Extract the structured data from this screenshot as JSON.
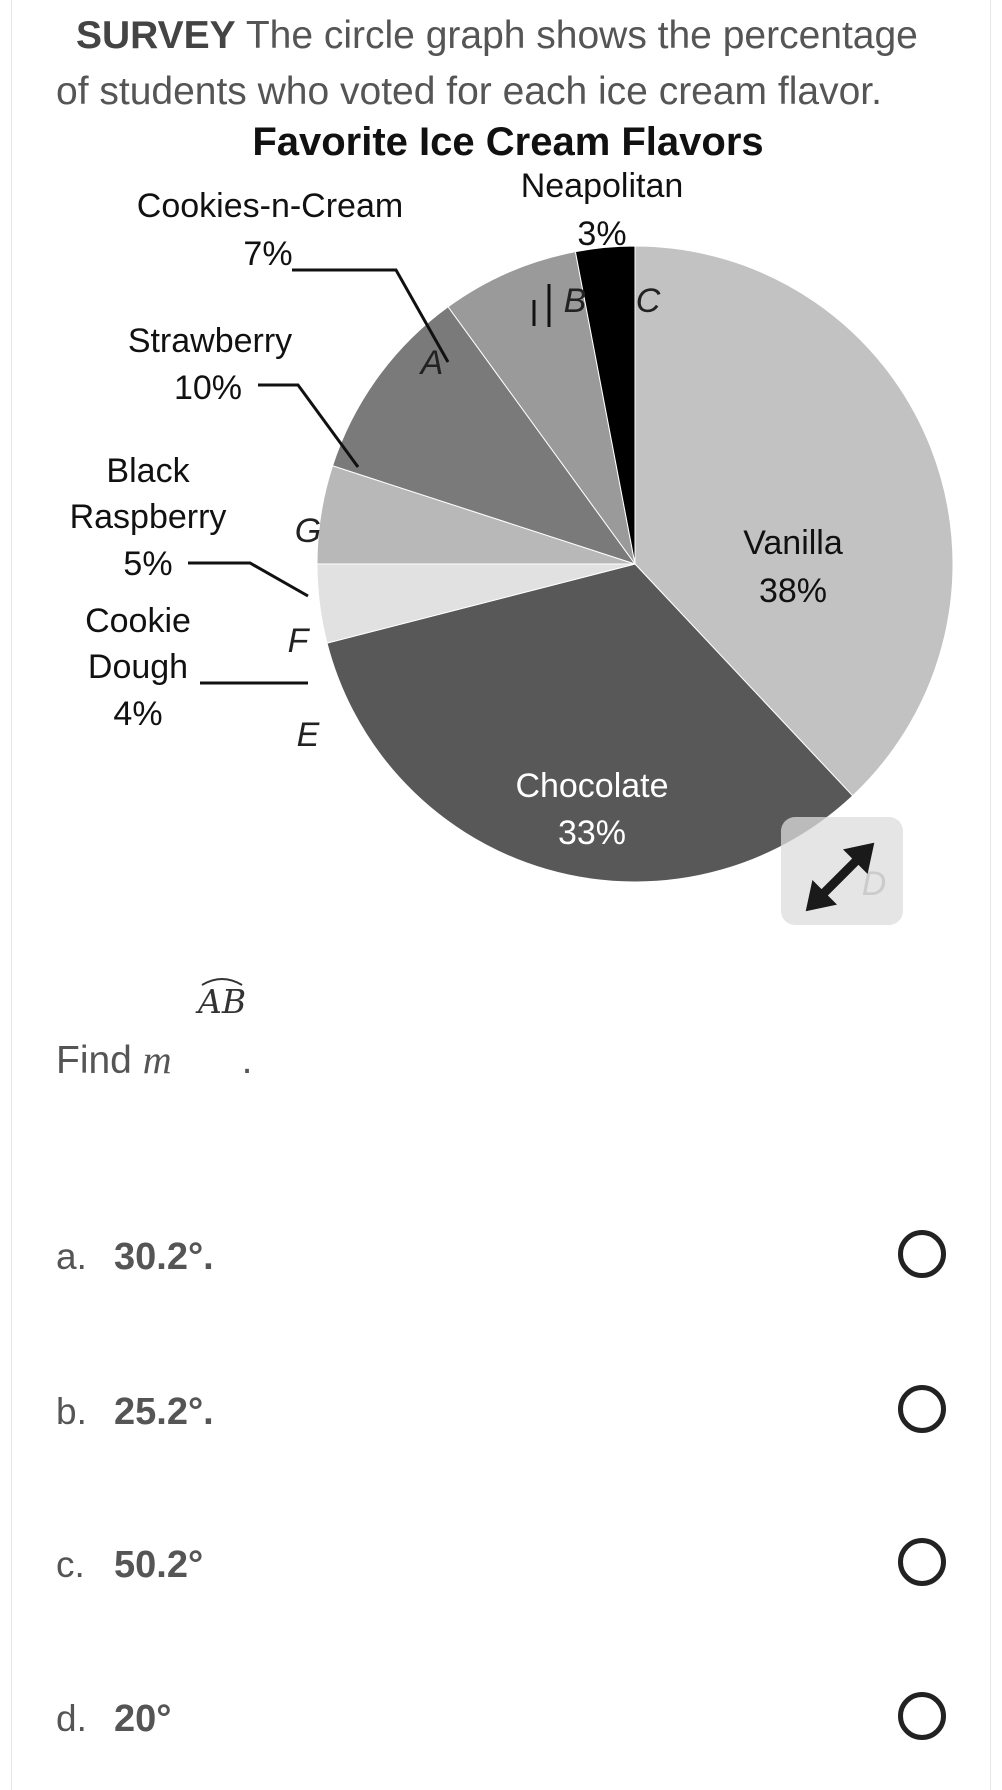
{
  "question": {
    "lead": "SURVEY",
    "text": " The circle graph shows the percentage of students who voted for each ice cream flavor."
  },
  "chart_data": {
    "type": "pie",
    "title": "Favorite Ice Cream Flavors",
    "slices": [
      {
        "name": "Vanilla",
        "percent": 38,
        "label": "38%",
        "color": "#c2c2c2"
      },
      {
        "name": "Chocolate",
        "percent": 33,
        "label": "33%",
        "color": "#585858"
      },
      {
        "name": "Cookie Dough",
        "percent": 4,
        "label": "4%",
        "color": "#e1e1e1"
      },
      {
        "name": "Black Raspberry",
        "percent": 5,
        "label": "5%",
        "color": "#b8b8b8"
      },
      {
        "name": "Strawberry",
        "percent": 10,
        "label": "10%",
        "color": "#7a7a7a"
      },
      {
        "name": "Cookies-n-Cream",
        "percent": 7,
        "label": "7%",
        "color": "#9a9a9a"
      },
      {
        "name": "Neapolitan",
        "percent": 3,
        "label": "3%",
        "color": "#000000"
      }
    ],
    "point_labels": [
      "A",
      "B",
      "C",
      "D",
      "E",
      "F",
      "G"
    ]
  },
  "arc_notation": "AB",
  "find": {
    "prefix": "Find ",
    "variable": "m",
    "suffix": "."
  },
  "options": [
    {
      "letter": "a.",
      "text": "30.2°."
    },
    {
      "letter": "b.",
      "text": "25.2°."
    },
    {
      "letter": "c.",
      "text": "50.2°"
    },
    {
      "letter": "d.",
      "text": "20°"
    }
  ],
  "icons": {
    "expand": "expand-icon"
  }
}
